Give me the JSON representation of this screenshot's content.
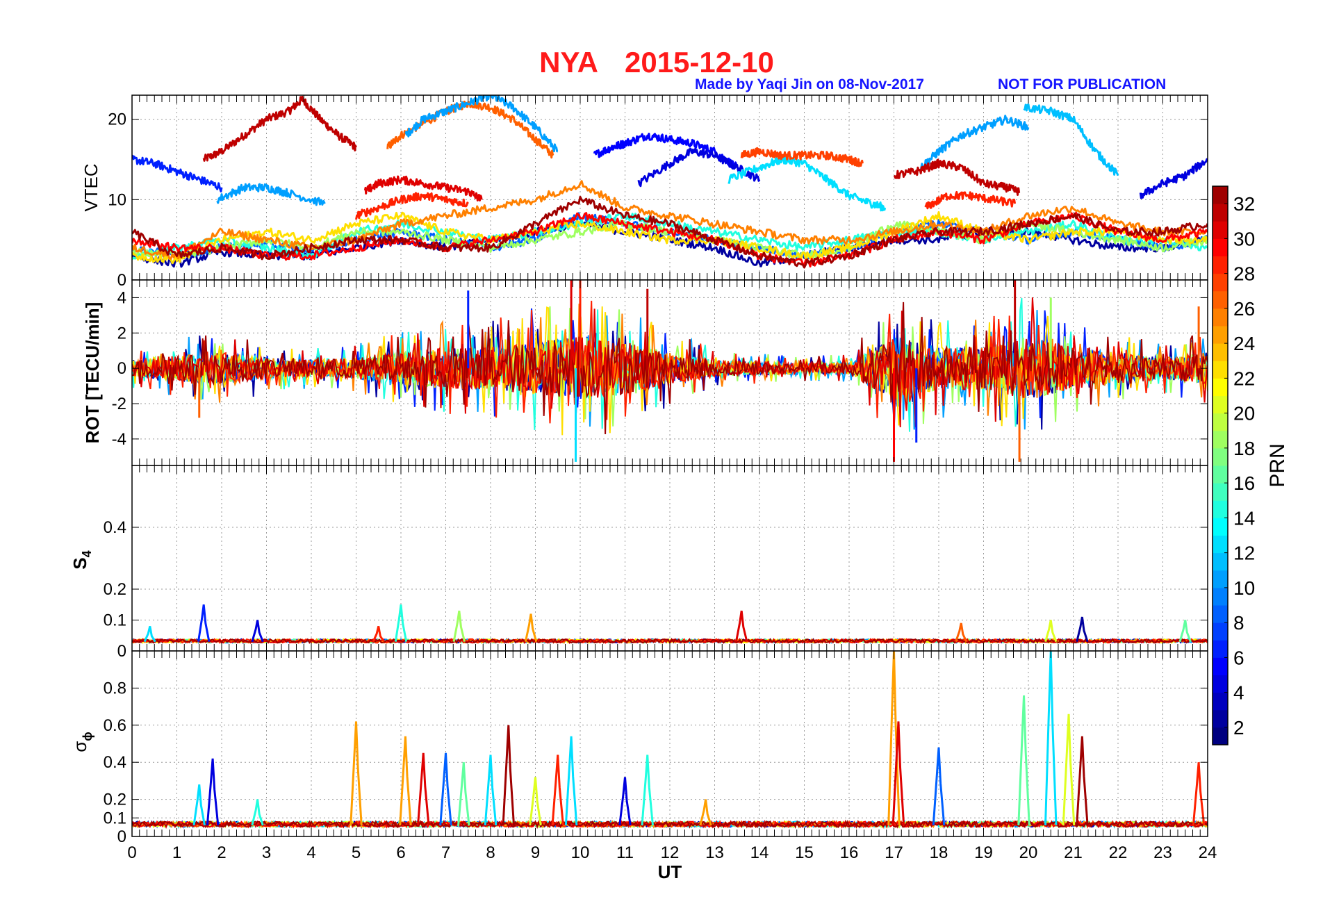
{
  "figure": {
    "title_station": "NYA",
    "title_date": "2015-12-10",
    "credit": "Made by Yaqi Jin on 08-Nov-2017",
    "notice": "NOT FOR PUBLICATION",
    "title_color": "#ff1a1a",
    "credit_color": "#1414ff"
  },
  "chart_data": [
    {
      "type": "line",
      "panel": "VTEC",
      "ylabel": "VTEC",
      "xlim": [
        0,
        24
      ],
      "ylim": [
        0,
        23
      ],
      "yticks": [
        0,
        10,
        20
      ],
      "grid": true,
      "series": [
        {
          "prn": 31,
          "x": [
            1.6,
            2.0,
            2.5,
            3.0,
            3.5,
            3.8,
            4.2,
            4.6,
            5.0
          ],
          "y": [
            15,
            16,
            18,
            20,
            21,
            22.5,
            20,
            18,
            16.5
          ]
        },
        {
          "prn": 26,
          "x": [
            5.7,
            6.0,
            6.5,
            7.0,
            7.5,
            8.0,
            8.5,
            9.0,
            9.4
          ],
          "y": [
            16.5,
            18,
            19.5,
            21,
            22,
            21.5,
            20,
            17.5,
            15.5
          ]
        },
        {
          "prn": 10,
          "x": [
            6.1,
            6.5,
            7.0,
            7.5,
            8.0,
            8.5,
            9.0,
            9.5
          ],
          "y": [
            18,
            20,
            21,
            22,
            23,
            21.5,
            19,
            16
          ]
        },
        {
          "prn": 5,
          "x": [
            10.3,
            10.7,
            11.0,
            11.5,
            12.0,
            12.5,
            13.0,
            13.5
          ],
          "y": [
            15.5,
            16.5,
            17,
            18,
            17.5,
            17,
            16,
            14
          ]
        },
        {
          "prn": 6,
          "x": [
            0,
            0.5,
            1.0,
            1.5,
            2.0
          ],
          "y": [
            15,
            14.5,
            13.5,
            12.5,
            11.5
          ]
        },
        {
          "prn": 4,
          "x": [
            11.3,
            12.0,
            12.5,
            13.0,
            13.5,
            14.0
          ],
          "y": [
            12,
            14.5,
            16,
            15.5,
            14,
            12.5
          ]
        },
        {
          "prn": 10,
          "x": [
            1.9,
            2.5,
            3.0,
            3.5,
            4.3
          ],
          "y": [
            10,
            11.5,
            11.5,
            10.8,
            9.5
          ]
        },
        {
          "prn": 12,
          "x": [
            13.3,
            14.0,
            14.5,
            15.0,
            15.5,
            16.0,
            16.5,
            16.8
          ],
          "y": [
            12.5,
            14,
            15,
            14.5,
            12.5,
            10.5,
            9.5,
            9
          ]
        },
        {
          "prn": 27,
          "x": [
            13.6,
            14.0,
            14.5,
            15.0,
            15.5,
            16.0,
            16.3
          ],
          "y": [
            15.5,
            16,
            15.5,
            15.5,
            15.5,
            15,
            14.5
          ]
        },
        {
          "prn": 30,
          "x": [
            5.2,
            5.5,
            6.0,
            6.5,
            7.0,
            7.5,
            7.8
          ],
          "y": [
            11,
            12,
            12.5,
            12,
            11.5,
            11,
            10
          ]
        },
        {
          "prn": 28,
          "x": [
            5.0,
            5.5,
            6.0,
            6.5,
            7.0,
            7.5
          ],
          "y": [
            8,
            9,
            10,
            10.5,
            10,
            9.5
          ]
        },
        {
          "prn": 10,
          "x": [
            17.6,
            18.0,
            18.5,
            19.0,
            19.5,
            20.0
          ],
          "y": [
            14,
            16,
            18,
            19,
            20,
            19
          ]
        },
        {
          "prn": 11,
          "x": [
            19.9,
            20.5,
            21.0,
            21.5,
            22.0
          ],
          "y": [
            21.5,
            21,
            20,
            16,
            13
          ]
        },
        {
          "prn": 31,
          "x": [
            17.0,
            17.5,
            18.0,
            18.5,
            19.0,
            19.5,
            19.8
          ],
          "y": [
            13,
            13.5,
            14.5,
            14,
            12,
            11.5,
            11
          ]
        },
        {
          "prn": 28,
          "x": [
            17.7,
            18.2,
            18.7,
            19.2,
            19.7
          ],
          "y": [
            9,
            10.5,
            10.5,
            10,
            9.5
          ]
        },
        {
          "prn": 4,
          "x": [
            22.5,
            23.0,
            23.5,
            24.0
          ],
          "y": [
            10.5,
            12,
            13,
            15
          ]
        },
        {
          "prn": 2,
          "x": [
            0,
            1,
            2,
            3,
            4,
            5,
            6,
            7,
            8,
            9,
            10,
            11,
            12,
            13,
            14,
            15,
            16,
            17,
            18,
            19,
            20,
            21,
            22,
            23,
            24
          ],
          "y": [
            3,
            2,
            3.5,
            3,
            3,
            4,
            5,
            4,
            5,
            6,
            7,
            6,
            5,
            4,
            2,
            3,
            4,
            5,
            5,
            6,
            6,
            5,
            4,
            4,
            5
          ]
        },
        {
          "prn": 8,
          "x": [
            0,
            1,
            2,
            3,
            4,
            5,
            6,
            7,
            8,
            9,
            10,
            11,
            12,
            13,
            14,
            15,
            16,
            17,
            18,
            19,
            20,
            21,
            22,
            23,
            24
          ],
          "y": [
            4,
            3,
            4,
            4.5,
            3.5,
            5,
            6,
            5,
            4,
            5,
            8,
            7,
            6,
            5,
            4,
            3,
            4,
            6,
            7,
            6,
            5,
            6,
            5,
            4,
            5
          ]
        },
        {
          "prn": 14,
          "x": [
            0,
            1,
            2,
            3,
            4,
            5,
            6,
            7,
            8,
            9,
            10,
            11,
            12,
            13,
            14,
            15,
            16,
            17,
            18,
            19,
            20,
            21,
            22,
            23,
            24
          ],
          "y": [
            3,
            4,
            5,
            4,
            3,
            6,
            7,
            6,
            5,
            6,
            7,
            8,
            7,
            6,
            5,
            4,
            5,
            6,
            6,
            5,
            6,
            7,
            5,
            5,
            4
          ]
        },
        {
          "prn": 18,
          "x": [
            0,
            1,
            2,
            3,
            4,
            5,
            6,
            7,
            8,
            9,
            10,
            11,
            12,
            13,
            14,
            15,
            16,
            17,
            18,
            19,
            20,
            21,
            22,
            23,
            24
          ],
          "y": [
            3.5,
            3,
            4,
            5,
            4,
            6,
            6,
            5,
            4,
            5,
            6,
            7,
            6,
            5,
            4,
            3,
            4,
            7,
            6,
            5,
            7,
            6,
            5,
            4,
            5
          ]
        },
        {
          "prn": 22,
          "x": [
            0,
            1,
            2,
            3,
            4,
            5,
            6,
            7,
            8,
            9,
            10,
            11,
            12,
            13,
            14,
            15,
            16,
            17,
            18,
            19,
            20,
            21,
            22,
            23,
            24
          ],
          "y": [
            3,
            2.5,
            5,
            6,
            5,
            7,
            8,
            6,
            5,
            6,
            7,
            6,
            5,
            5,
            4,
            3,
            4,
            6,
            8,
            6,
            5,
            6,
            6,
            5,
            5
          ]
        },
        {
          "prn": 25,
          "x": [
            0,
            1,
            2,
            3,
            4,
            5,
            6,
            7,
            8,
            9,
            10,
            11,
            12,
            13,
            14,
            15,
            16,
            17,
            18,
            19,
            20,
            21,
            22,
            23,
            24
          ],
          "y": [
            4,
            3,
            6,
            5,
            4,
            5,
            7,
            8,
            9,
            10,
            12,
            9,
            8,
            7,
            6,
            5,
            5,
            6,
            7,
            6,
            8,
            9,
            7,
            6,
            6
          ]
        },
        {
          "prn": 29,
          "x": [
            0,
            1,
            2,
            3,
            4,
            5,
            6,
            7,
            8,
            9,
            10,
            11,
            12,
            13,
            14,
            15,
            16,
            17,
            18,
            19,
            20,
            21,
            22,
            23,
            24
          ],
          "y": [
            5,
            4,
            4,
            3,
            3,
            4,
            5,
            4,
            5,
            6,
            8,
            7,
            6,
            5,
            3,
            2,
            3,
            5,
            6,
            5,
            7,
            8,
            6,
            5,
            6
          ]
        },
        {
          "prn": 32,
          "x": [
            0,
            1,
            2,
            3,
            4,
            5,
            6,
            7,
            8,
            9,
            10,
            11,
            12,
            13,
            14,
            15,
            16,
            17,
            18,
            19,
            20,
            21,
            22,
            23,
            24
          ],
          "y": [
            6,
            3,
            4,
            3,
            4,
            5,
            5,
            4,
            4,
            7,
            10,
            8,
            7,
            5,
            3,
            2,
            3,
            5,
            6,
            6,
            7,
            8,
            6,
            6,
            7
          ]
        }
      ]
    },
    {
      "type": "line",
      "panel": "ROT",
      "ylabel": "ROT [TECU/min]",
      "xlim": [
        0,
        24
      ],
      "ylim": [
        -5.5,
        5
      ],
      "yticks": [
        -4,
        -2,
        0,
        2,
        4
      ],
      "grid": true,
      "envelope": {
        "x": [
          0,
          1,
          2,
          3,
          4,
          5,
          6,
          7,
          8,
          9,
          10,
          11,
          12,
          13,
          14,
          15,
          16,
          17,
          18,
          19,
          20,
          21,
          22,
          23,
          24
        ],
        "amplitude": [
          0.8,
          1.2,
          1.5,
          1.0,
          0.8,
          1.0,
          1.5,
          2.0,
          2.0,
          2.5,
          3.0,
          2.5,
          1.5,
          0.8,
          0.6,
          0.5,
          0.6,
          3.0,
          2.0,
          2.0,
          3.0,
          2.0,
          1.5,
          1.0,
          1.5
        ]
      },
      "spikes": [
        {
          "x": 9.8,
          "y": 5.0
        },
        {
          "x": 9.9,
          "y": -5.3
        },
        {
          "x": 10.0,
          "y": 5.0
        },
        {
          "x": 17.0,
          "y": -5.3
        },
        {
          "x": 17.5,
          "y": -4.2
        },
        {
          "x": 19.7,
          "y": 5.0
        },
        {
          "x": 19.8,
          "y": -5.3
        },
        {
          "x": 11.5,
          "y": 4.5
        },
        {
          "x": 7.5,
          "y": 4.4
        },
        {
          "x": 20.5,
          "y": 4.0
        },
        {
          "x": 1.5,
          "y": -2.8
        },
        {
          "x": 23.8,
          "y": 3.5
        }
      ]
    },
    {
      "type": "line",
      "panel": "S4",
      "ylabel": "S4",
      "xlim": [
        0,
        24
      ],
      "ylim": [
        0,
        0.6
      ],
      "yticks": [
        0,
        0.1,
        0.2,
        0.4
      ],
      "grid": true,
      "baseline": 0.03,
      "peaks": [
        {
          "x": 1.6,
          "y": 0.15
        },
        {
          "x": 2.8,
          "y": 0.1
        },
        {
          "x": 6.0,
          "y": 0.15
        },
        {
          "x": 7.3,
          "y": 0.13
        },
        {
          "x": 8.9,
          "y": 0.12
        },
        {
          "x": 13.6,
          "y": 0.13
        },
        {
          "x": 21.2,
          "y": 0.11
        },
        {
          "x": 23.5,
          "y": 0.1
        },
        {
          "x": 0.4,
          "y": 0.08
        },
        {
          "x": 18.5,
          "y": 0.09
        },
        {
          "x": 20.5,
          "y": 0.1
        },
        {
          "x": 5.5,
          "y": 0.08
        }
      ]
    },
    {
      "type": "line",
      "panel": "sigma_phi",
      "ylabel": "σ",
      "ylabel_sub": "ϕ",
      "xlabel": "UT",
      "xlim": [
        0,
        24
      ],
      "ylim": [
        0,
        1
      ],
      "yticks": [
        0,
        0.1,
        0.2,
        0.4,
        0.6,
        0.8
      ],
      "xticks": [
        0,
        1,
        2,
        3,
        4,
        5,
        6,
        7,
        8,
        9,
        10,
        11,
        12,
        13,
        14,
        15,
        16,
        17,
        18,
        19,
        20,
        21,
        22,
        23,
        24
      ],
      "grid": true,
      "baseline": 0.06,
      "peaks": [
        {
          "x": 1.5,
          "y": 0.28
        },
        {
          "x": 1.8,
          "y": 0.42
        },
        {
          "x": 2.8,
          "y": 0.2
        },
        {
          "x": 5.0,
          "y": 0.62
        },
        {
          "x": 6.1,
          "y": 0.54
        },
        {
          "x": 6.5,
          "y": 0.45
        },
        {
          "x": 7.0,
          "y": 0.45
        },
        {
          "x": 7.4,
          "y": 0.4
        },
        {
          "x": 8.0,
          "y": 0.44
        },
        {
          "x": 8.4,
          "y": 0.6
        },
        {
          "x": 9.0,
          "y": 0.32
        },
        {
          "x": 9.5,
          "y": 0.44
        },
        {
          "x": 9.8,
          "y": 0.54
        },
        {
          "x": 11.0,
          "y": 0.32
        },
        {
          "x": 11.5,
          "y": 0.44
        },
        {
          "x": 12.8,
          "y": 0.2
        },
        {
          "x": 17.0,
          "y": 1.0
        },
        {
          "x": 17.1,
          "y": 0.62
        },
        {
          "x": 18.0,
          "y": 0.48
        },
        {
          "x": 19.9,
          "y": 0.76
        },
        {
          "x": 20.5,
          "y": 1.0
        },
        {
          "x": 21.2,
          "y": 0.54
        },
        {
          "x": 20.9,
          "y": 0.66
        },
        {
          "x": 23.8,
          "y": 0.4
        }
      ]
    }
  ],
  "colorbar": {
    "label": "PRN",
    "range": [
      1,
      33
    ],
    "ticks": [
      2,
      4,
      6,
      8,
      10,
      12,
      14,
      16,
      18,
      20,
      22,
      24,
      26,
      28,
      30,
      32
    ]
  }
}
